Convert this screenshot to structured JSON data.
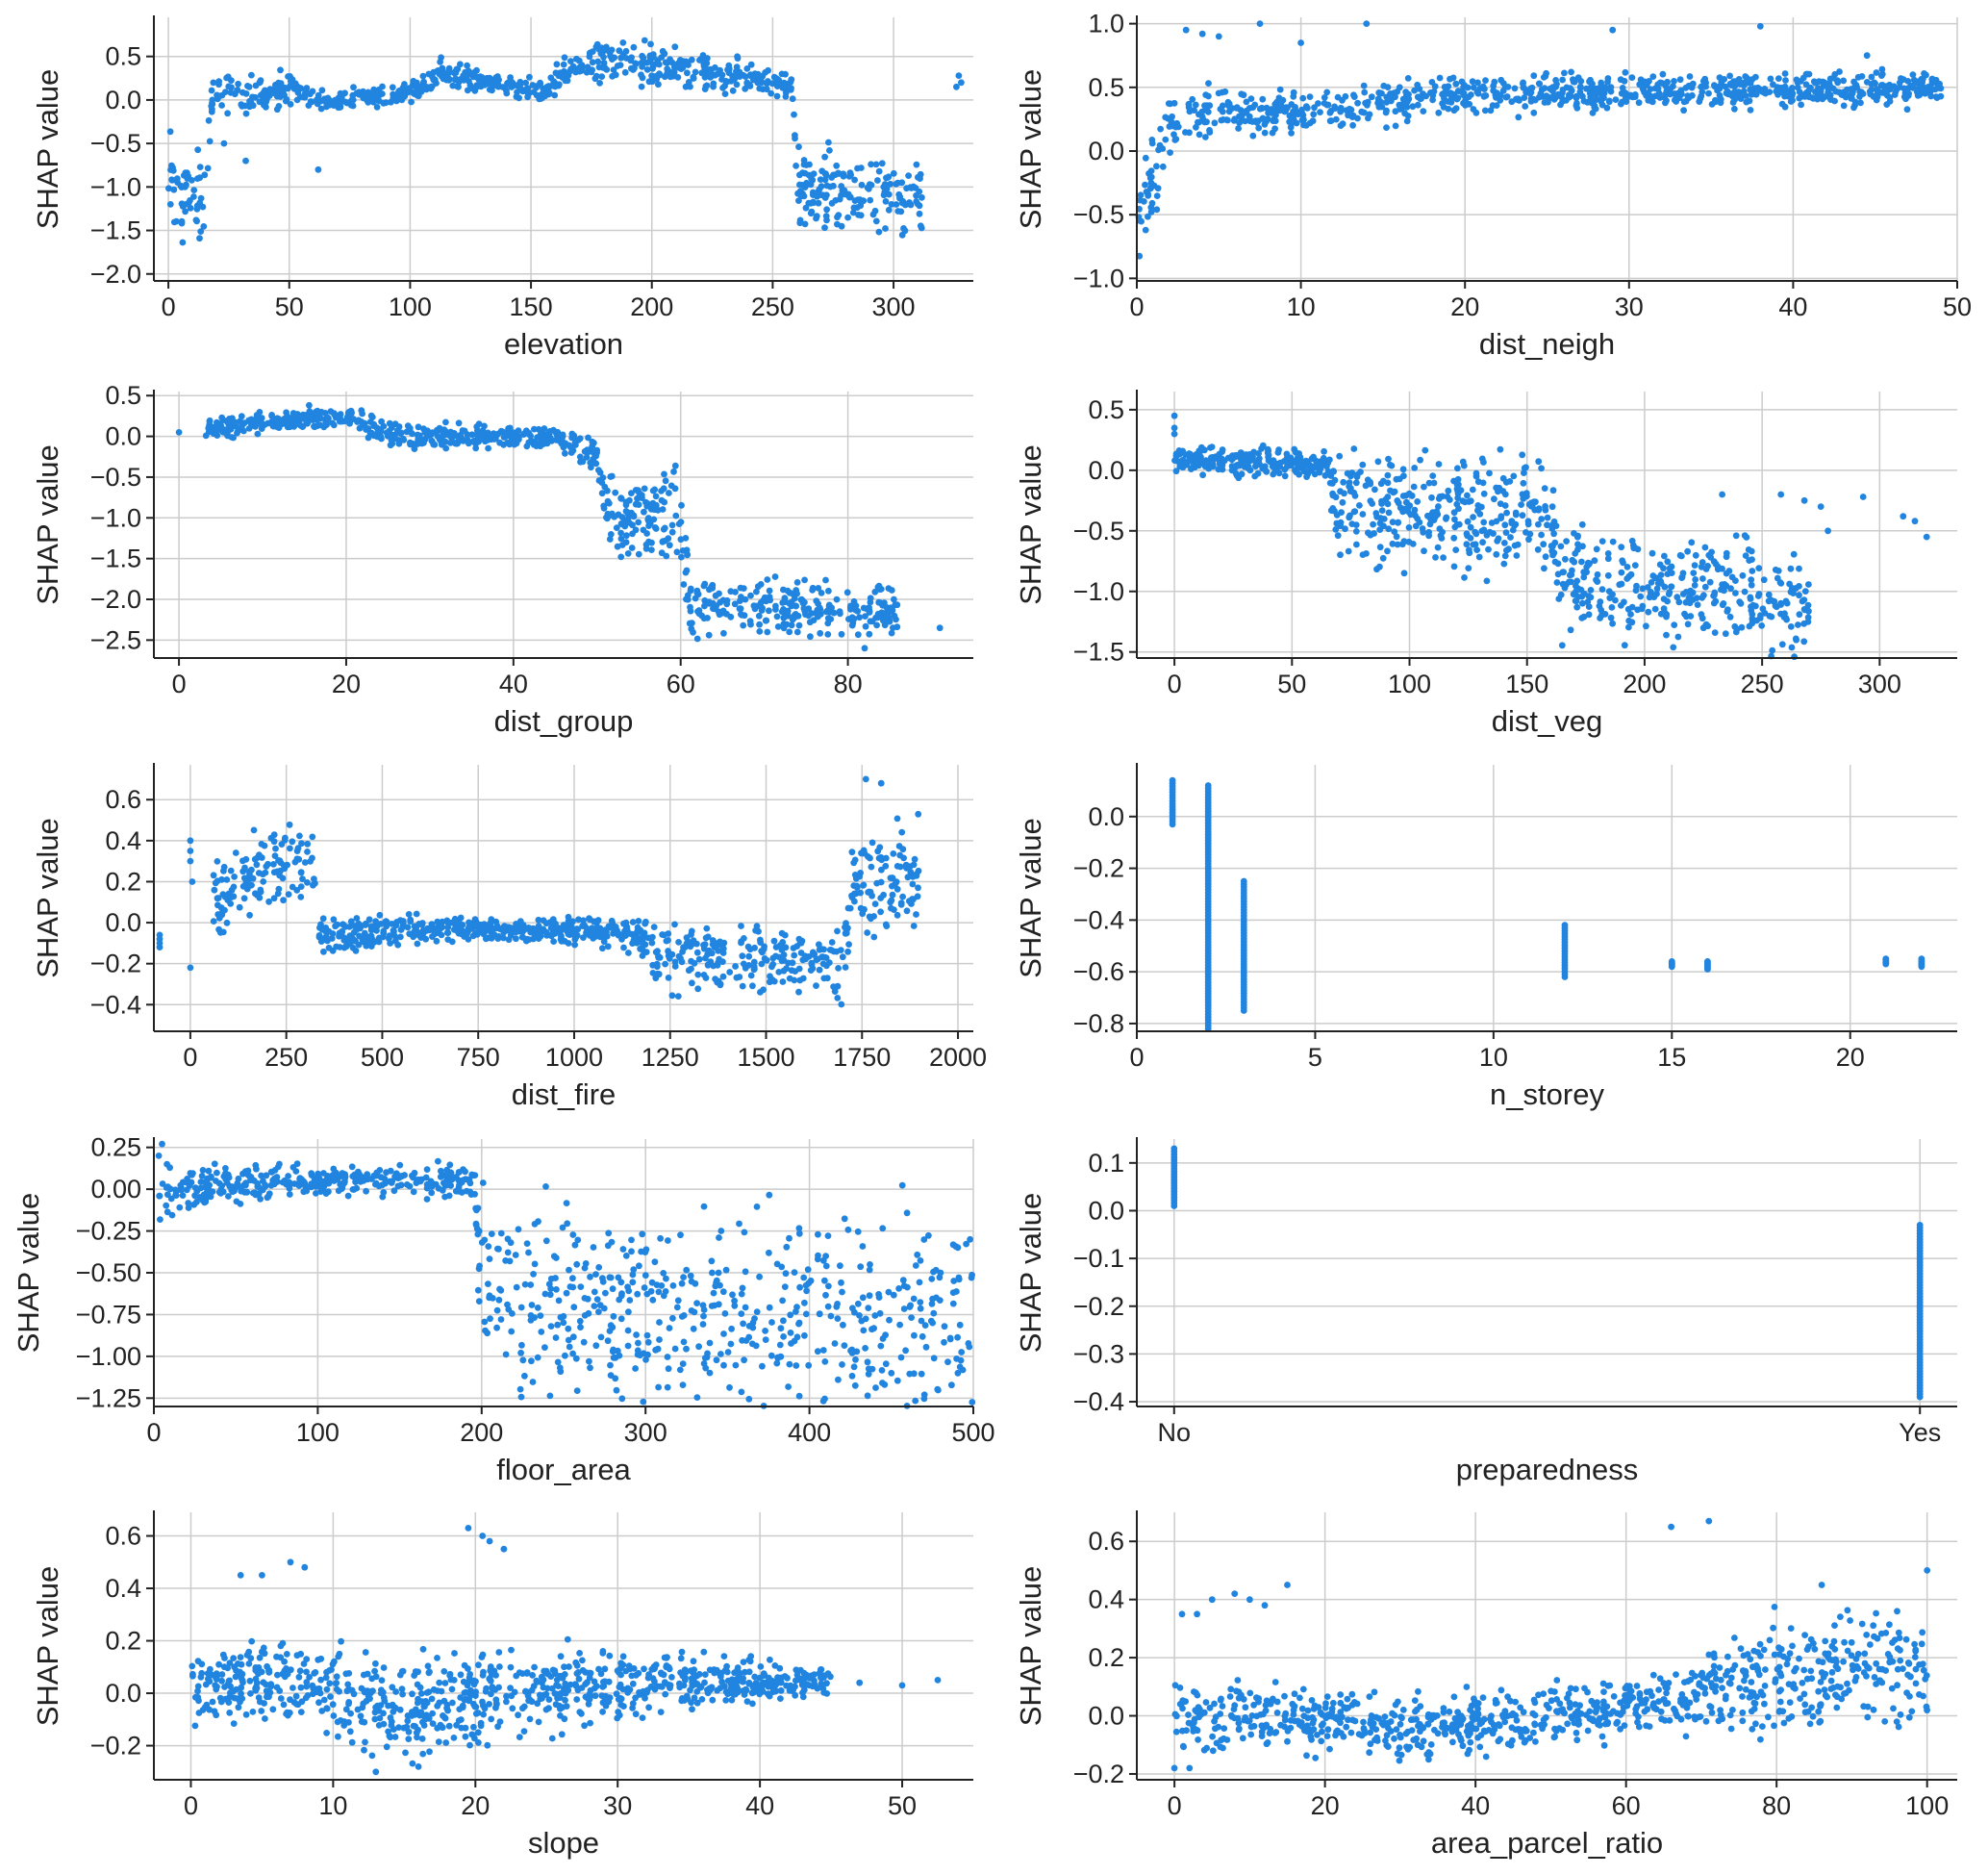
{
  "point_color": "#2185e0",
  "grid_color": "#cccccc",
  "axis_color": "#222222",
  "chart_data": [
    {
      "type": "scatter",
      "xlabel": "elevation",
      "ylabel": "SHAP value",
      "xlim": [
        -6,
        333
      ],
      "ylim": [
        -2.08,
        0.95
      ],
      "xticks": [
        0,
        50,
        100,
        150,
        200,
        250,
        300
      ],
      "yticks": [
        -2.0,
        -1.5,
        -1.0,
        -0.5,
        0.0,
        0.5
      ],
      "ytick_labels": [
        "−2.0",
        "−1.5",
        "−1.0",
        "−0.5",
        "0.0",
        "0.5"
      ],
      "trend": [
        [
          0,
          -1.0,
          0.45
        ],
        [
          15,
          -1.2,
          0.4
        ],
        [
          18,
          0.05,
          0.2
        ],
        [
          55,
          0.1,
          0.15
        ],
        [
          60,
          0.0,
          0.1
        ],
        [
          100,
          0.05,
          0.1
        ],
        [
          110,
          0.3,
          0.12
        ],
        [
          155,
          0.1,
          0.1
        ],
        [
          170,
          0.45,
          0.15
        ],
        [
          220,
          0.35,
          0.2
        ],
        [
          258,
          0.15,
          0.1
        ],
        [
          260,
          -1.0,
          0.35
        ],
        [
          312,
          -1.1,
          0.35
        ]
      ],
      "extra": [
        [
          327,
          0.28
        ],
        [
          328,
          0.2
        ],
        [
          326,
          0.15
        ],
        [
          23,
          -0.5
        ],
        [
          32,
          -0.7
        ],
        [
          62,
          -0.8
        ]
      ]
    },
    {
      "type": "scatter",
      "xlabel": "dist_neigh",
      "ylabel": "SHAP value",
      "xlim": [
        0,
        50
      ],
      "ylim": [
        -1.02,
        1.05
      ],
      "xticks": [
        0,
        10,
        20,
        30,
        40,
        50
      ],
      "yticks": [
        -1.0,
        -0.5,
        0.0,
        0.5,
        1.0
      ],
      "ytick_labels": [
        "−1.0",
        "−0.5",
        "0.0",
        "0.5",
        "1.0"
      ],
      "trend": [
        [
          0.1,
          -0.6,
          0.2
        ],
        [
          1,
          -0.2,
          0.25
        ],
        [
          2,
          0.2,
          0.2
        ],
        [
          4,
          0.3,
          0.15
        ],
        [
          10,
          0.3,
          0.12
        ],
        [
          20,
          0.45,
          0.12
        ],
        [
          49,
          0.48,
          0.1
        ]
      ],
      "extra": [
        [
          3,
          0.95
        ],
        [
          4,
          0.92
        ],
        [
          5,
          0.9
        ],
        [
          7.5,
          1.0
        ],
        [
          10,
          0.85
        ],
        [
          14,
          1.0
        ],
        [
          29,
          0.95
        ],
        [
          38,
          0.98
        ],
        [
          44.5,
          0.75
        ],
        [
          47.3,
          0.6
        ],
        [
          49,
          0.43
        ]
      ]
    },
    {
      "type": "scatter",
      "xlabel": "dist_group",
      "ylabel": "SHAP value",
      "xlim": [
        -3,
        95
      ],
      "ylim": [
        -2.72,
        0.55
      ],
      "xticks": [
        0,
        20,
        40,
        60,
        80
      ],
      "yticks": [
        -2.5,
        -2.0,
        -1.5,
        -1.0,
        -0.5,
        0.0,
        0.5
      ],
      "ytick_labels": [
        "−2.5",
        "−2.0",
        "−1.5",
        "−1.0",
        "−0.5",
        "0.0",
        "0.5"
      ],
      "trend": [
        [
          3,
          0.1,
          0.1
        ],
        [
          20,
          0.25,
          0.1
        ],
        [
          26,
          0.0,
          0.12
        ],
        [
          45,
          0.0,
          0.1
        ],
        [
          50,
          -0.25,
          0.15
        ],
        [
          51,
          -1.0,
          0.4
        ],
        [
          60,
          -1.0,
          0.4
        ],
        [
          61,
          -2.0,
          0.3
        ],
        [
          86,
          -2.2,
          0.25
        ]
      ],
      "extra": [
        [
          0,
          0.05
        ],
        [
          91,
          -2.35
        ],
        [
          85.5,
          -2.0
        ],
        [
          82,
          -2.6
        ]
      ]
    },
    {
      "type": "scatter",
      "xlabel": "dist_veg",
      "ylabel": "SHAP value",
      "xlim": [
        -16,
        333
      ],
      "ylim": [
        -1.55,
        0.65
      ],
      "xticks": [
        0,
        50,
        100,
        150,
        200,
        250,
        300
      ],
      "yticks": [
        -1.5,
        -1.0,
        -0.5,
        0.0,
        0.5
      ],
      "ytick_labels": [
        "−1.5",
        "−1.0",
        "−0.5",
        "0.0",
        "0.5"
      ],
      "trend": [
        [
          0,
          0.1,
          0.1
        ],
        [
          65,
          0.05,
          0.08
        ],
        [
          68,
          -0.3,
          0.35
        ],
        [
          160,
          -0.35,
          0.4
        ],
        [
          165,
          -0.9,
          0.35
        ],
        [
          270,
          -1.1,
          0.35
        ]
      ],
      "extra": [
        [
          0,
          0.45
        ],
        [
          0,
          0.35
        ],
        [
          0,
          0.3
        ],
        [
          233,
          -0.2
        ],
        [
          258,
          -0.2
        ],
        [
          268,
          -0.25
        ],
        [
          275,
          -0.3
        ],
        [
          293,
          -0.22
        ],
        [
          278,
          -0.5
        ],
        [
          310,
          -0.38
        ],
        [
          315,
          -0.42
        ],
        [
          320,
          -0.55
        ]
      ]
    },
    {
      "type": "scatter",
      "xlabel": "dist_fire",
      "ylabel": "SHAP value",
      "xlim": [
        -95,
        2040
      ],
      "ylim": [
        -0.53,
        0.77
      ],
      "xticks": [
        0,
        250,
        500,
        750,
        1000,
        1250,
        1500,
        1750,
        2000
      ],
      "yticks": [
        -0.4,
        -0.2,
        0.0,
        0.2,
        0.4,
        0.6
      ],
      "ytick_labels": [
        "−0.4",
        "−0.2",
        "0.0",
        "0.2",
        "0.4",
        "0.6"
      ],
      "trend": [
        [
          60,
          0.1,
          0.15
        ],
        [
          200,
          0.25,
          0.15
        ],
        [
          320,
          0.3,
          0.15
        ],
        [
          330,
          -0.05,
          0.08
        ],
        [
          700,
          -0.03,
          0.04
        ],
        [
          1150,
          -0.05,
          0.06
        ],
        [
          1200,
          -0.15,
          0.12
        ],
        [
          1700,
          -0.2,
          0.15
        ],
        [
          1730,
          0.2,
          0.2
        ],
        [
          1900,
          0.2,
          0.2
        ]
      ],
      "extra": [
        [
          -80,
          -0.08
        ],
        [
          -80,
          -0.1
        ],
        [
          -80,
          -0.12
        ],
        [
          -80,
          -0.06
        ],
        [
          0,
          -0.22
        ],
        [
          0,
          0.4
        ],
        [
          0,
          0.35
        ],
        [
          0,
          0.3
        ],
        [
          5,
          0.2
        ],
        [
          1760,
          0.7
        ],
        [
          1800,
          0.68
        ]
      ]
    },
    {
      "type": "scatter",
      "xlabel": "n_storey",
      "ylabel": "SHAP value",
      "xlim": [
        0,
        23
      ],
      "ylim": [
        -0.83,
        0.2
      ],
      "xticks": [
        0,
        5,
        10,
        15,
        20
      ],
      "yticks": [
        -0.8,
        -0.6,
        -0.4,
        -0.2,
        0.0
      ],
      "ytick_labels": [
        "−0.8",
        "−0.6",
        "−0.4",
        "−0.2",
        "0.0"
      ],
      "columns": [
        [
          1,
          -0.03,
          0.14
        ],
        [
          2,
          -0.82,
          0.12
        ],
        [
          3,
          -0.75,
          -0.25
        ],
        [
          12,
          -0.62,
          -0.42
        ],
        [
          15,
          -0.58,
          -0.56
        ],
        [
          16,
          -0.59,
          -0.56
        ],
        [
          21,
          -0.57,
          -0.55
        ],
        [
          22,
          -0.58,
          -0.55
        ]
      ]
    },
    {
      "type": "scatter",
      "xlabel": "floor_area",
      "ylabel": "SHAP value",
      "xlim": [
        0,
        500
      ],
      "ylim": [
        -1.3,
        0.3
      ],
      "xticks": [
        0,
        100,
        200,
        300,
        400,
        500
      ],
      "yticks": [
        -1.25,
        -1.0,
        -0.75,
        -0.5,
        -0.25,
        0.0,
        0.25
      ],
      "ytick_labels": [
        "−1.25",
        "−1.00",
        "−0.75",
        "−0.50",
        "−0.25",
        "0.00",
        "0.25"
      ],
      "trend": [
        [
          3,
          -0.05,
          0.12
        ],
        [
          30,
          0.0,
          0.1
        ],
        [
          100,
          0.05,
          0.07
        ],
        [
          195,
          0.05,
          0.07
        ],
        [
          200,
          -0.6,
          0.45
        ],
        [
          280,
          -0.75,
          0.45
        ],
        [
          500,
          -0.8,
          0.5
        ]
      ],
      "extra": [
        [
          5,
          0.27
        ],
        [
          3,
          0.2
        ],
        [
          8,
          0.15
        ],
        [
          498,
          -0.3
        ],
        [
          480,
          -0.5
        ],
        [
          450,
          -1.1
        ],
        [
          410,
          -0.4
        ]
      ]
    },
    {
      "type": "scatter",
      "xlabel": "preparedness",
      "ylabel": "SHAP value",
      "xlim": [
        -0.05,
        1.05
      ],
      "ylim": [
        -0.41,
        0.15
      ],
      "xticks": [
        0,
        1
      ],
      "xtick_labels": [
        "No",
        "Yes"
      ],
      "yticks": [
        -0.4,
        -0.3,
        -0.2,
        -0.1,
        0.0,
        0.1
      ],
      "ytick_labels": [
        "−0.4",
        "−0.3",
        "−0.2",
        "−0.1",
        "0.0",
        "0.1"
      ],
      "columns": [
        [
          0,
          0.01,
          0.13
        ],
        [
          1,
          -0.39,
          -0.03
        ]
      ]
    },
    {
      "type": "scatter",
      "xlabel": "slope",
      "ylabel": "SHAP value",
      "xlim": [
        -2.6,
        55
      ],
      "ylim": [
        -0.33,
        0.69
      ],
      "xticks": [
        0,
        10,
        20,
        30,
        40,
        50
      ],
      "yticks": [
        -0.2,
        0.0,
        0.2,
        0.4,
        0.6
      ],
      "ytick_labels": [
        "−0.2",
        "0.0",
        "0.2",
        "0.4",
        "0.6"
      ],
      "trend": [
        [
          0,
          0.02,
          0.1
        ],
        [
          6,
          0.05,
          0.12
        ],
        [
          15,
          -0.05,
          0.15
        ],
        [
          25,
          0.02,
          0.12
        ],
        [
          35,
          0.04,
          0.08
        ],
        [
          45,
          0.04,
          0.05
        ]
      ],
      "extra": [
        [
          19.5,
          0.63
        ],
        [
          20.5,
          0.6
        ],
        [
          21,
          0.58
        ],
        [
          22,
          0.55
        ],
        [
          7,
          0.5
        ],
        [
          8,
          0.48
        ],
        [
          3.5,
          0.45
        ],
        [
          5,
          0.45
        ],
        [
          47,
          0.04
        ],
        [
          50,
          0.03
        ],
        [
          52.5,
          0.05
        ],
        [
          13,
          -0.3
        ],
        [
          16,
          -0.28
        ]
      ]
    },
    {
      "type": "scatter",
      "xlabel": "area_parcel_ratio",
      "ylabel": "SHAP value",
      "xlim": [
        -5,
        104
      ],
      "ylim": [
        -0.22,
        0.7
      ],
      "xticks": [
        0,
        20,
        40,
        60,
        80,
        100
      ],
      "yticks": [
        -0.2,
        0.0,
        0.2,
        0.4,
        0.6
      ],
      "ytick_labels": [
        "−0.2",
        "0.0",
        "0.2",
        "0.4",
        "0.6"
      ],
      "trend": [
        [
          0,
          0.0,
          0.1
        ],
        [
          15,
          0.0,
          0.08
        ],
        [
          30,
          -0.05,
          0.08
        ],
        [
          50,
          0.0,
          0.08
        ],
        [
          65,
          0.05,
          0.08
        ],
        [
          80,
          0.15,
          0.15
        ],
        [
          100,
          0.15,
          0.15
        ]
      ],
      "extra": [
        [
          5,
          0.4
        ],
        [
          8,
          0.42
        ],
        [
          10,
          0.4
        ],
        [
          12,
          0.38
        ],
        [
          15,
          0.45
        ],
        [
          1,
          0.35
        ],
        [
          3,
          0.35
        ],
        [
          71,
          0.67
        ],
        [
          66,
          0.65
        ],
        [
          100,
          0.5
        ],
        [
          86,
          0.45
        ],
        [
          0,
          -0.18
        ],
        [
          2,
          -0.18
        ]
      ]
    }
  ]
}
